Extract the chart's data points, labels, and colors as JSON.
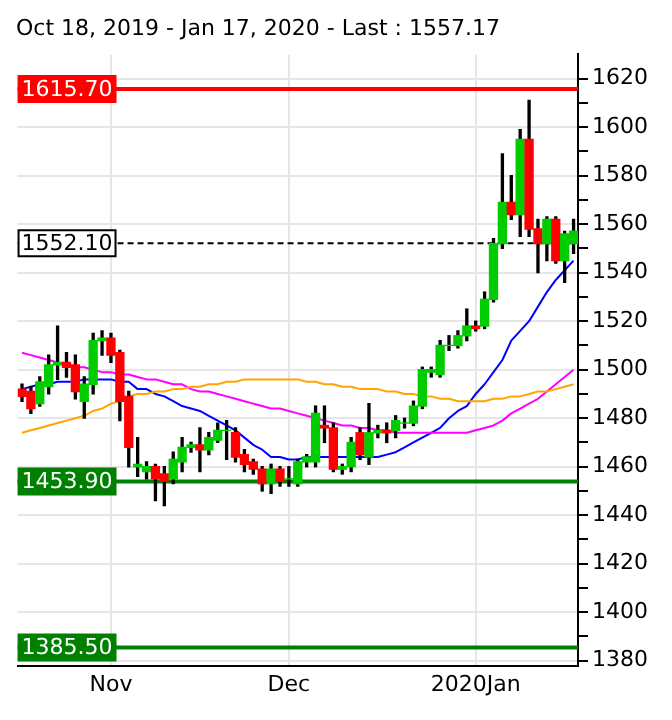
{
  "chart_data": {
    "type": "candlestick",
    "title": "Oct 18, 2019 - Jan 17, 2020 - Last : 1557.17",
    "categories": [
      null,
      null,
      null,
      null,
      null,
      null,
      null,
      null,
      null,
      null,
      "Nov",
      null,
      null,
      null,
      null,
      null,
      null,
      null,
      null,
      null,
      null,
      null,
      null,
      null,
      null,
      null,
      null,
      null,
      null,
      null,
      "Dec",
      null,
      null,
      null,
      null,
      null,
      null,
      null,
      null,
      null,
      null,
      null,
      null,
      null,
      null,
      null,
      null,
      null,
      null,
      null,
      null,
      "2020Jan",
      null,
      null,
      null,
      null,
      null,
      null,
      null,
      null,
      null,
      null,
      null
    ],
    "ohlc": [
      [
        1492,
        1494,
        1487,
        1489
      ],
      [
        1491,
        1493,
        1482,
        1484
      ],
      [
        1486,
        1497,
        1485,
        1495
      ],
      [
        1493,
        1506,
        1490,
        1502
      ],
      [
        1502,
        1518,
        1496,
        1503
      ],
      [
        1503,
        1507,
        1497,
        1501
      ],
      [
        1502,
        1506,
        1488,
        1491
      ],
      [
        1487,
        1497,
        1480,
        1494
      ],
      [
        1494,
        1515,
        1490,
        1512
      ],
      [
        1512,
        1516,
        1506,
        1513
      ],
      [
        1513,
        1515,
        1503,
        1506
      ],
      [
        1507,
        1508,
        1479,
        1487
      ],
      [
        1489,
        1491,
        1460,
        1468
      ],
      [
        1460,
        1472,
        1456,
        1461
      ],
      [
        1458,
        1462,
        1455,
        1460
      ],
      [
        1460,
        1461,
        1446,
        1455
      ],
      [
        1457,
        1460,
        1444,
        1454
      ],
      [
        1455,
        1466,
        1453,
        1463
      ],
      [
        1462,
        1472,
        1458,
        1468
      ],
      [
        1468,
        1470,
        1466,
        1469
      ],
      [
        1469,
        1476,
        1458,
        1467
      ],
      [
        1467,
        1474,
        1465,
        1472
      ],
      [
        1471,
        1478,
        1470,
        1475
      ],
      [
        1475,
        1479,
        1463,
        1475
      ],
      [
        1474,
        1476,
        1462,
        1464
      ],
      [
        1465,
        1467,
        1458,
        1461
      ],
      [
        1462,
        1463,
        1457,
        1459
      ],
      [
        1459,
        1460,
        1450,
        1453
      ],
      [
        1453,
        1461,
        1449,
        1459
      ],
      [
        1459,
        1460,
        1452,
        1454
      ],
      [
        1455,
        1460,
        1452,
        1455
      ],
      [
        1453,
        1463,
        1452,
        1462
      ],
      [
        1462,
        1465,
        1460,
        1464
      ],
      [
        1462,
        1485,
        1460,
        1482
      ],
      [
        1477,
        1485,
        1470,
        1476
      ],
      [
        1476,
        1478,
        1458,
        1459
      ],
      [
        1459,
        1461,
        1457,
        1460
      ],
      [
        1460,
        1472,
        1458,
        1470
      ],
      [
        1474,
        1476,
        1463,
        1465
      ],
      [
        1464,
        1486,
        1461,
        1474
      ],
      [
        1474,
        1477,
        1472,
        1475
      ],
      [
        1475,
        1478,
        1470,
        1474
      ],
      [
        1475,
        1481,
        1472,
        1479
      ],
      [
        1478,
        1480,
        1476,
        1478
      ],
      [
        1478,
        1487,
        1477,
        1485
      ],
      [
        1485,
        1501,
        1484,
        1500
      ],
      [
        1499,
        1501,
        1497,
        1500
      ],
      [
        1498,
        1512,
        1497,
        1510
      ],
      [
        1510,
        1514,
        1508,
        1510
      ],
      [
        1510,
        1516,
        1509,
        1514
      ],
      [
        1514,
        1525,
        1512,
        1518
      ],
      [
        1518,
        1520,
        1516,
        1517
      ],
      [
        1518,
        1532,
        1517,
        1529
      ],
      [
        1529,
        1554,
        1528,
        1552
      ],
      [
        1552,
        1589,
        1550,
        1569
      ],
      [
        1569,
        1580,
        1562,
        1564
      ],
      [
        1564,
        1599,
        1555,
        1595
      ],
      [
        1595,
        1611,
        1555,
        1558
      ],
      [
        1558,
        1562,
        1540,
        1552
      ],
      [
        1552,
        1563,
        1545,
        1562
      ],
      [
        1562,
        1563,
        1544,
        1545
      ],
      [
        1545,
        1557,
        1536,
        1556
      ],
      [
        1552,
        1562,
        1548,
        1557.17
      ]
    ],
    "series": [
      {
        "type": "line",
        "color": "#ffa500",
        "values": [
          1474,
          1475,
          1476,
          1477,
          1478,
          1479,
          1480,
          1481,
          1483,
          1484,
          1486,
          1487,
          1489,
          1490,
          1490,
          1491,
          1491,
          1492,
          1492,
          1493,
          1493,
          1494,
          1494,
          1495,
          1495,
          1496,
          1496,
          1496,
          1496,
          1496,
          1496,
          1496,
          1495,
          1495,
          1494,
          1494,
          1493,
          1493,
          1492,
          1492,
          1492,
          1491,
          1491,
          1490,
          1490,
          1489,
          1489,
          1488,
          1488,
          1487,
          1487,
          1487,
          1487,
          1488,
          1488,
          1489,
          1489,
          1490,
          1491,
          1491,
          1492,
          1493,
          1494
        ]
      },
      {
        "type": "line",
        "color": "#ff00ff",
        "values": [
          1507,
          1506,
          1505,
          1504,
          1503,
          1502,
          1501,
          1501,
          1500,
          1499,
          1499,
          1498,
          1498,
          1497,
          1496,
          1496,
          1495,
          1494,
          1494,
          1492,
          1491,
          1491,
          1490,
          1489,
          1488,
          1487,
          1486,
          1485,
          1484,
          1484,
          1483,
          1482,
          1481,
          1480,
          1479,
          1478,
          1477,
          1477,
          1476,
          1476,
          1475,
          1475,
          1474,
          1474,
          1474,
          1474,
          1474,
          1474,
          1474,
          1474,
          1474,
          1475,
          1476,
          1477,
          1479,
          1482,
          1484,
          1486,
          1488,
          1491,
          1494,
          1497,
          1500
        ]
      },
      {
        "type": "line",
        "color": "#0000ff",
        "values": [
          1492,
          1493,
          1494,
          1494,
          1495,
          1495,
          1495,
          1496,
          1496,
          1496,
          1496,
          1495,
          1495,
          1492,
          1492,
          1490,
          1489,
          1487,
          1485,
          1484,
          1483,
          1481,
          1479,
          1477,
          1475,
          1472,
          1469,
          1467,
          1464,
          1464,
          1463,
          1463,
          1464,
          1464,
          1464,
          1464,
          1464,
          1464,
          1464,
          1464,
          1464,
          1465,
          1466,
          1468,
          1470,
          1472,
          1474,
          1476,
          1480,
          1483,
          1485,
          1490,
          1494,
          1499,
          1504,
          1512,
          1516,
          1520,
          1526,
          1532,
          1537,
          1541,
          1545
        ]
      }
    ],
    "ref_lines": [
      {
        "axis": "y",
        "value": 1615.7,
        "label": "1615.70",
        "color": "#ff0000",
        "line_style": "solid"
      },
      {
        "axis": "y",
        "value": 1552.1,
        "label": "1552.10",
        "color": "#000000",
        "line_style": "dashed"
      },
      {
        "axis": "y",
        "value": 1453.9,
        "label": "1453.90",
        "color": "#008000",
        "line_style": "solid"
      },
      {
        "axis": "y",
        "value": 1385.5,
        "label": "1385.50",
        "color": "#008000",
        "line_style": "solid"
      }
    ],
    "ylim": [
      1378,
      1630
    ],
    "yticks": [
      1380,
      {
        "value": 1390,
        "label": null
      },
      1400,
      {
        "value": 1410,
        "label": null
      },
      1420,
      {
        "value": 1430,
        "label": null
      },
      1440,
      {
        "value": 1450,
        "label": null
      },
      1460,
      {
        "value": 1470,
        "label": null
      },
      1480,
      {
        "value": 1490,
        "label": null
      },
      1500,
      {
        "value": 1510,
        "label": null
      },
      1520,
      {
        "value": 1530,
        "label": null
      },
      1540,
      {
        "value": 1550,
        "label": null
      },
      1560,
      {
        "value": 1570,
        "label": null
      },
      1580,
      {
        "value": 1590,
        "label": null
      },
      1600,
      {
        "value": 1610,
        "label": null
      },
      1620
    ],
    "grid": true,
    "legend": false,
    "marker": "none"
  }
}
